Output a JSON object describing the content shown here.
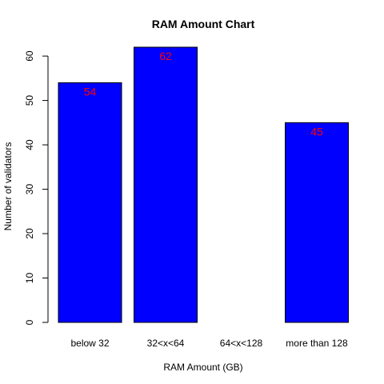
{
  "chart_data": {
    "type": "bar",
    "title": "RAM Amount Chart",
    "xlabel": "RAM Amount (GB)",
    "ylabel": "Number of validators",
    "categories": [
      "below 32",
      "32<x<64",
      "64<x<128",
      "more than 128"
    ],
    "values": [
      54,
      62,
      0,
      45
    ],
    "data_labels": [
      "54",
      "62",
      "",
      "45"
    ],
    "ylim": [
      0,
      62
    ],
    "yticks": [
      0,
      10,
      20,
      30,
      40,
      50,
      60
    ],
    "grid": false,
    "colors": {
      "bar": "#0000ff",
      "bar_border": "#000000",
      "data_label": "#ff0000"
    }
  }
}
